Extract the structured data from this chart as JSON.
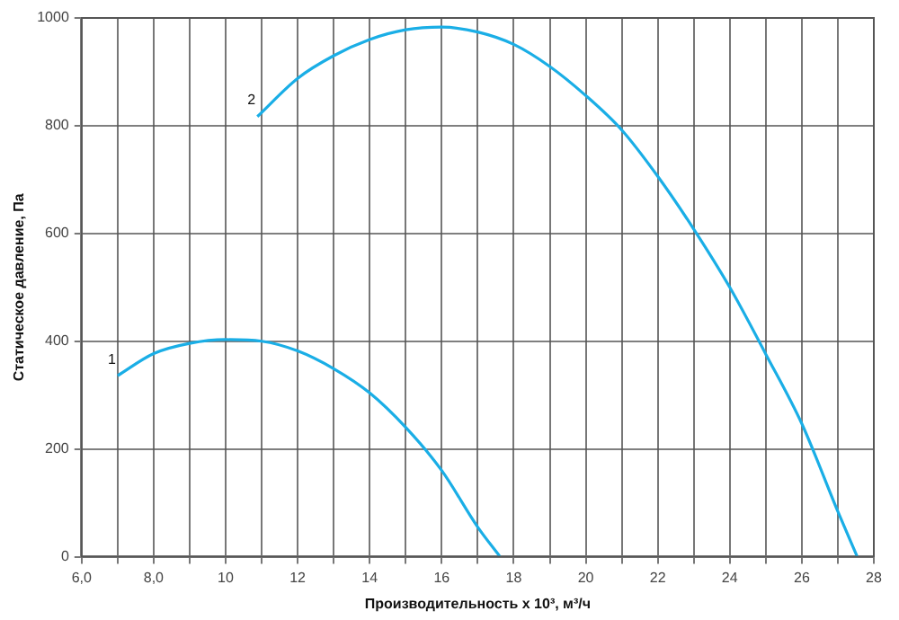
{
  "chart_data": {
    "type": "line",
    "xlabel": "Производительность х 10³, м³/ч",
    "ylabel": "Статическое давление, Па",
    "xlim": [
      6,
      28
    ],
    "ylim": [
      0,
      1000
    ],
    "xticks": [
      {
        "value": 6,
        "label": "6,0"
      },
      {
        "value": 7,
        "label": null
      },
      {
        "value": 8,
        "label": "8,0"
      },
      {
        "value": 9,
        "label": null
      },
      10,
      {
        "value": 11,
        "label": null
      },
      12,
      {
        "value": 13,
        "label": null
      },
      14,
      {
        "value": 15,
        "label": null
      },
      16,
      {
        "value": 17,
        "label": null
      },
      18,
      {
        "value": 19,
        "label": null
      },
      20,
      {
        "value": 21,
        "label": null
      },
      22,
      {
        "value": 23,
        "label": null
      },
      24,
      {
        "value": 25,
        "label": null
      },
      26,
      {
        "value": 27,
        "label": null
      },
      28
    ],
    "yticks": [
      0,
      200,
      400,
      600,
      800,
      1000
    ],
    "grid": true,
    "legend": false,
    "marker": "none",
    "line_style": "solid",
    "series": [
      {
        "name": "1",
        "color": "#1aaee6",
        "x": [
          7,
          8,
          9,
          10,
          11,
          12,
          13,
          14,
          15,
          16,
          17,
          17.62
        ],
        "values": [
          336,
          377,
          396,
          403,
          400,
          382,
          349,
          304,
          240,
          160,
          55,
          0
        ]
      },
      {
        "name": "2",
        "color": "#1aaee6",
        "x": [
          10.88,
          12,
          13,
          14,
          15,
          16,
          17,
          18,
          19,
          20,
          21,
          22,
          23,
          24,
          25,
          26,
          27,
          27.54
        ],
        "values": [
          817,
          888,
          930,
          960,
          978,
          983,
          974,
          951,
          910,
          856,
          792,
          706,
          608,
          500,
          376,
          247,
          84,
          0
        ]
      }
    ]
  }
}
